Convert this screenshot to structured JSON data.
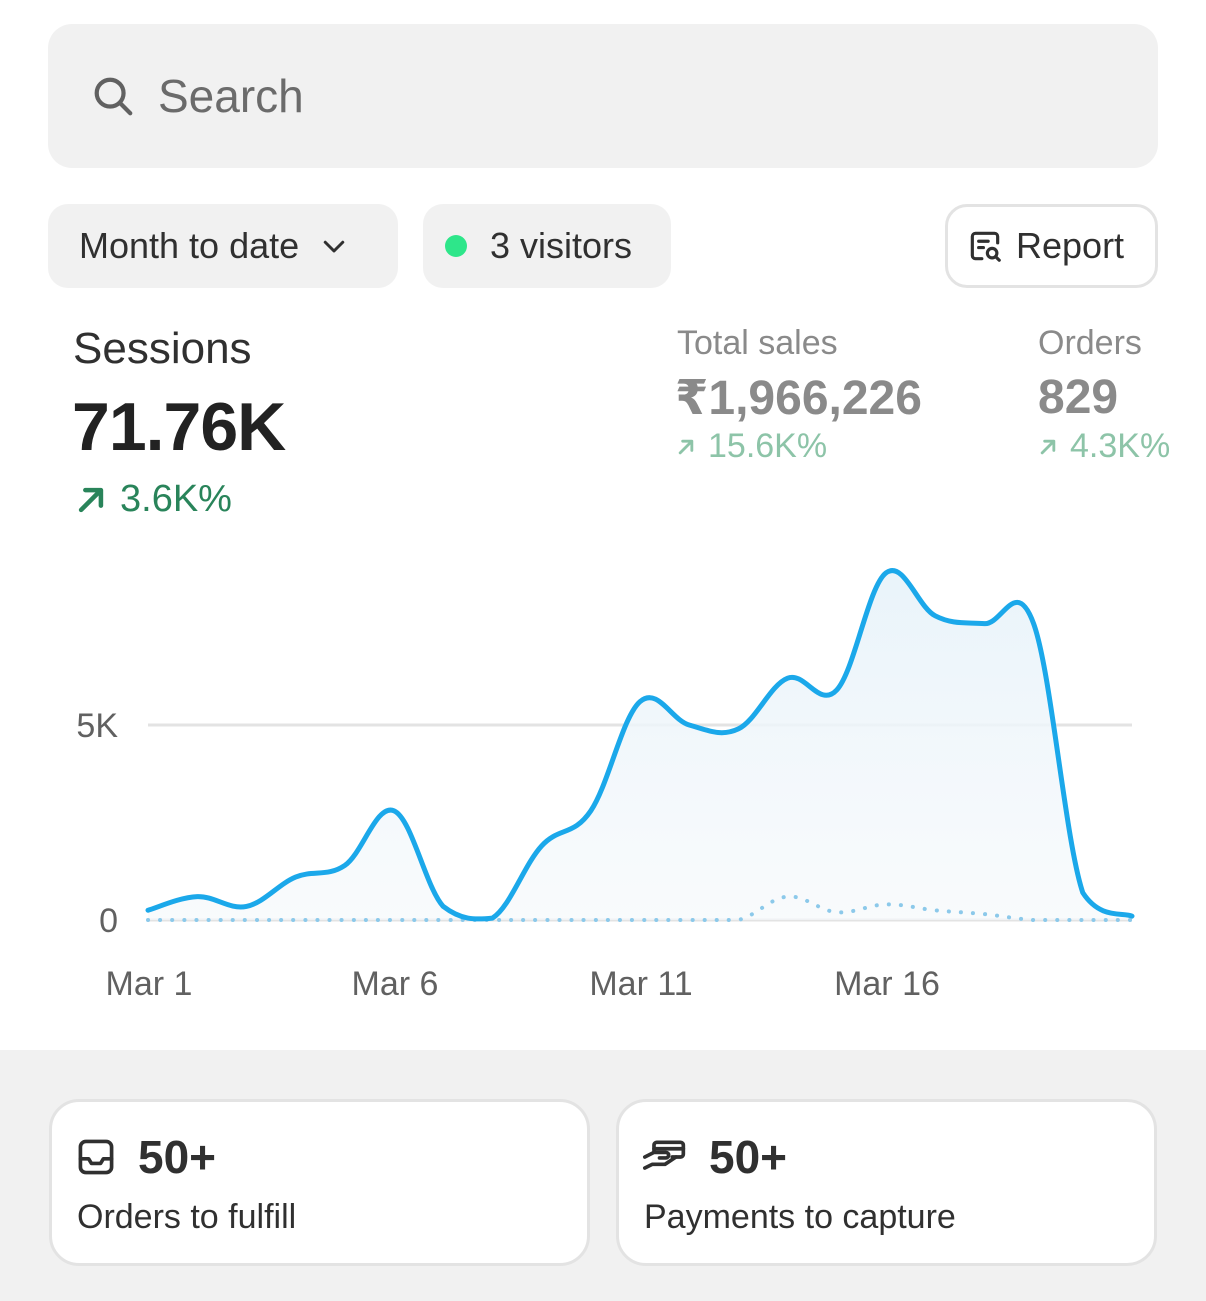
{
  "search": {
    "placeholder": "Search"
  },
  "filters": {
    "date_range": "Month to date",
    "visitors": "3 visitors",
    "report_label": "Report"
  },
  "metrics": {
    "sessions": {
      "label": "Sessions",
      "value": "71.76K",
      "change": "3.6K%"
    },
    "total_sales": {
      "label": "Total sales",
      "value": "₹1,966,226",
      "change": "15.6K%"
    },
    "orders": {
      "label": "Orders",
      "value": "829",
      "change": "4.3K%"
    }
  },
  "colors": {
    "series_current": "#1ba8ea",
    "series_previous": "#8cc9ea",
    "trend_up": "#29845a",
    "live_dot": "#2ee68a"
  },
  "chart_data": {
    "type": "line",
    "x": [
      "Mar 1",
      "Mar 2",
      "Mar 3",
      "Mar 4",
      "Mar 5",
      "Mar 6",
      "Mar 7",
      "Mar 8",
      "Mar 9",
      "Mar 10",
      "Mar 11",
      "Mar 12",
      "Mar 13",
      "Mar 14",
      "Mar 15",
      "Mar 16",
      "Mar 17",
      "Mar 18",
      "Mar 19",
      "Mar 20",
      "Mar 21"
    ],
    "x_tick_labels": [
      "Mar 1",
      "Mar 6",
      "Mar 11",
      "Mar 16"
    ],
    "y_tick_labels": [
      "0",
      "5K"
    ],
    "ylim": [
      0,
      9000
    ],
    "series": [
      {
        "values": [
          250,
          600,
          350,
          1100,
          1400,
          2800,
          350,
          50,
          1900,
          2800,
          5600,
          5000,
          4900,
          6200,
          5900,
          8900,
          7800,
          7600,
          7600,
          700,
          100
        ]
      },
      {
        "values": [
          0,
          0,
          0,
          0,
          0,
          0,
          0,
          0,
          0,
          0,
          0,
          0,
          0,
          600,
          200,
          400,
          250,
          150,
          0,
          0,
          0
        ],
        "style": "dotted"
      }
    ],
    "grid": true
  },
  "cards": [
    {
      "count": "50+",
      "label": "Orders to fulfill",
      "icon": "inbox-icon"
    },
    {
      "count": "50+",
      "label": "Payments to capture",
      "icon": "hand-payment-icon"
    }
  ]
}
